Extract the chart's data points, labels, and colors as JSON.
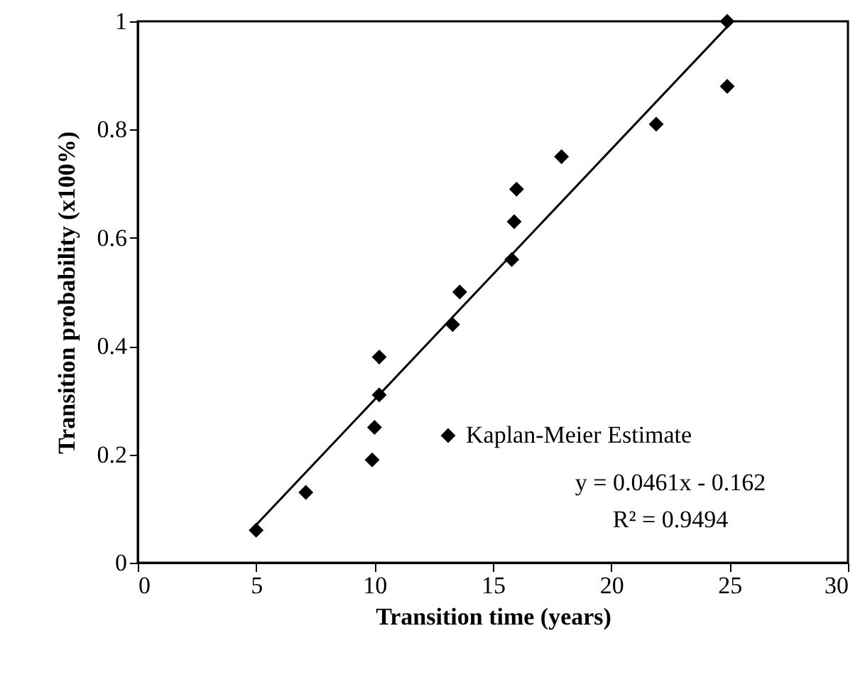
{
  "chart_data": {
    "type": "scatter",
    "xlabel": "Transition time  (years)",
    "ylabel": "Transition probability (x100%)",
    "xlim": [
      0,
      30
    ],
    "xticks": [
      0,
      5,
      10,
      15,
      20,
      25,
      30
    ],
    "ylim": [
      0,
      1
    ],
    "yticks": [
      0,
      0.2,
      0.4,
      0.6,
      0.8,
      1
    ],
    "grid": false,
    "legend": "bottom right",
    "marker": "diamond",
    "annotations": [
      "y = 0.0461x - 0.162",
      "R² = 0.9494"
    ],
    "series": [
      {
        "name": "Kaplan-Meier Estimate",
        "color": "#000000",
        "x": [
          5.0,
          7.1,
          9.9,
          10.0,
          10.2,
          10.2,
          13.3,
          13.6,
          15.8,
          15.9,
          16.0,
          17.9,
          21.9,
          24.9,
          24.9
        ],
        "values": [
          0.06,
          0.13,
          0.19,
          0.25,
          0.31,
          0.38,
          0.44,
          0.5,
          0.56,
          0.63,
          0.69,
          0.75,
          0.81,
          0.88,
          1.0
        ]
      },
      {
        "color": "#000000",
        "type": "line",
        "line_style": "solid",
        "marker": "none",
        "x": [
          5.0,
          24.9
        ],
        "values": [
          0.07,
          0.99
        ]
      }
    ]
  }
}
